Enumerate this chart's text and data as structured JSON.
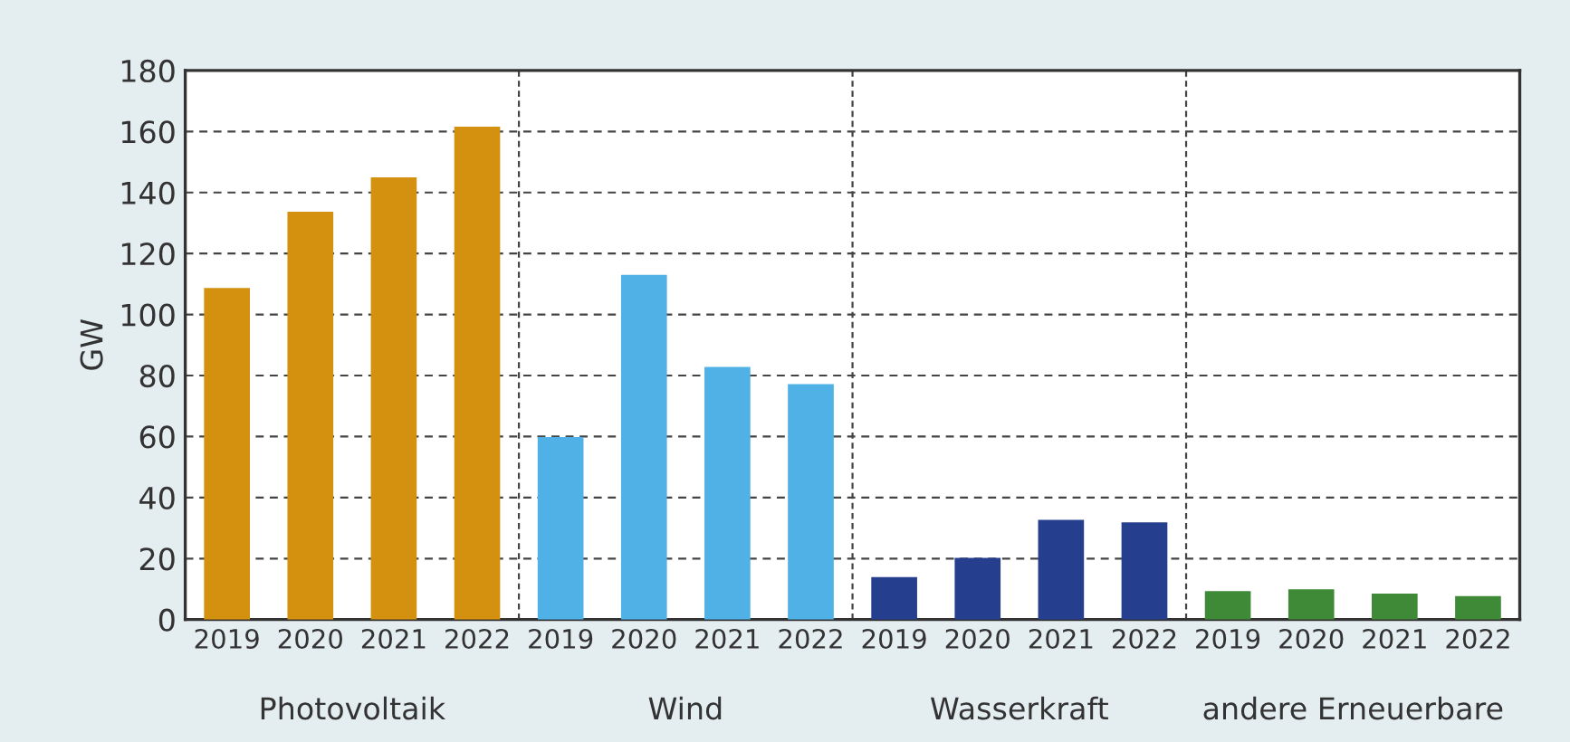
{
  "chart_data": {
    "type": "bar",
    "ylabel": "GW",
    "categories": [
      "2019",
      "2020",
      "2021",
      "2022",
      "2019",
      "2020",
      "2021",
      "2022",
      "2019",
      "2020",
      "2021",
      "2022",
      "2019",
      "2020",
      "2021",
      "2022"
    ],
    "values": [
      108.7,
      133.7,
      145,
      161.6,
      59.8,
      113,
      82.8,
      77.2,
      13.9,
      20.2,
      32.7,
      31.9,
      9.3,
      9.9,
      8.5,
      7.7
    ],
    "colors": [
      "#d4900f",
      "#d4900f",
      "#d4900f",
      "#d4900f",
      "#4fb1e6",
      "#4fb1e6",
      "#4fb1e6",
      "#4fb1e6",
      "#253f8e",
      "#253f8e",
      "#253f8e",
      "#253f8e",
      "#3f8a36",
      "#3f8a36",
      "#3f8a36",
      "#3f8a36"
    ],
    "annotations": [
      "Photovoltaik",
      "Wind",
      "Wasserkraft",
      "andere Erneuerbare"
    ],
    "ylim": [
      0,
      180
    ],
    "yticks": [
      0,
      20,
      40,
      60,
      80,
      100,
      120,
      140,
      160,
      180
    ],
    "grid": "y"
  }
}
